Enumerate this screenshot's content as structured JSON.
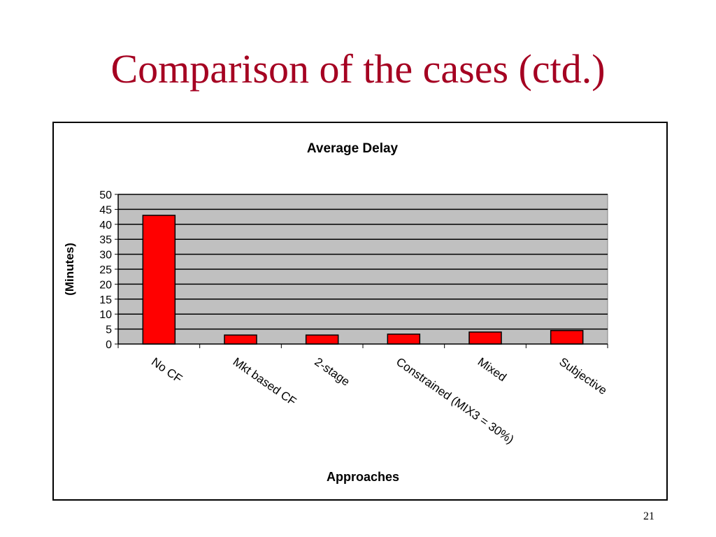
{
  "slide": {
    "title": "Comparison of the cases (ctd.)",
    "page_number": "21"
  },
  "colors": {
    "title": "#a50021",
    "bar_fill": "#ff0000",
    "plot_background": "#c0c0c0"
  },
  "chart_data": {
    "type": "bar",
    "title": "Average Delay",
    "xlabel": "Approaches",
    "ylabel": "(Minutes)",
    "categories": [
      "No CF",
      "Mkt based CF",
      "2-stage",
      "Constrained (MIX3 = 30%)",
      "Mixed",
      "Subjective"
    ],
    "values": [
      43,
      3,
      3,
      3.3,
      4,
      4.5
    ],
    "ylim": [
      0,
      50
    ],
    "yticks": [
      0,
      5,
      10,
      15,
      20,
      25,
      30,
      35,
      40,
      45,
      50
    ],
    "grid": true,
    "legend": "none"
  }
}
